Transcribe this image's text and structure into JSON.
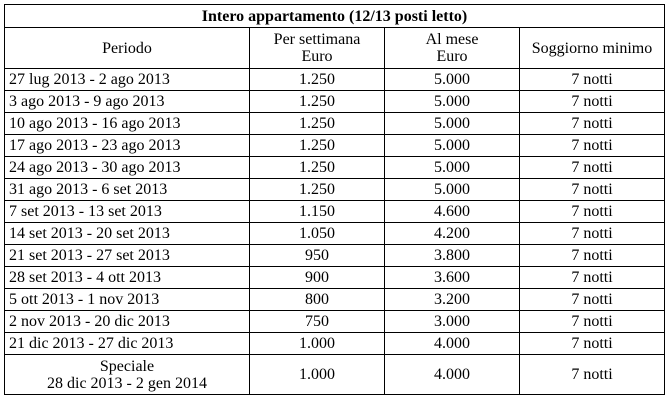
{
  "table": {
    "title": "Intero appartamento (12/13 posti letto)",
    "headers": {
      "period": "Periodo",
      "per_week_line1": "Per settimana",
      "per_week_line2": "Euro",
      "per_month_line1": "Al mese",
      "per_month_line2": "Euro",
      "min_stay": "Soggiorno minimo"
    },
    "rows": [
      {
        "period": "27 lug 2013 - 2 ago 2013",
        "week": "1.250",
        "month": "5.000",
        "min": "7 notti"
      },
      {
        "period": "3 ago 2013 - 9 ago 2013",
        "week": "1.250",
        "month": "5.000",
        "min": "7 notti"
      },
      {
        "period": "10 ago 2013 - 16 ago 2013",
        "week": "1.250",
        "month": "5.000",
        "min": "7 notti"
      },
      {
        "period": "17 ago 2013 - 23 ago 2013",
        "week": "1.250",
        "month": "5.000",
        "min": "7 notti"
      },
      {
        "period": "24 ago 2013 - 30 ago 2013",
        "week": "1.250",
        "month": "5.000",
        "min": "7 notti"
      },
      {
        "period": "31 ago 2013 - 6 set 2013",
        "week": "1.250",
        "month": "5.000",
        "min": "7 notti"
      },
      {
        "period": "7 set 2013 - 13 set 2013",
        "week": "1.150",
        "month": "4.600",
        "min": "7 notti"
      },
      {
        "period": "14 set 2013 - 20 set 2013",
        "week": "1.050",
        "month": "4.200",
        "min": "7 notti"
      },
      {
        "period": "21 set 2013 - 27 set 2013",
        "week": "950",
        "month": "3.800",
        "min": "7 notti"
      },
      {
        "period": "28 set 2013 - 4 ott 2013",
        "week": "900",
        "month": "3.600",
        "min": "7 notti"
      },
      {
        "period": "5 ott 2013 - 1 nov 2013",
        "week": "800",
        "month": "3.200",
        "min": "7 notti"
      },
      {
        "period": "2 nov 2013 - 20 dic 2013",
        "week": "750",
        "month": "3.000",
        "min": "7 notti"
      },
      {
        "period": "21 dic 2013 - 27 dic 2013",
        "week": "1.000",
        "month": "4.000",
        "min": "7 notti"
      }
    ],
    "special": {
      "label": "Speciale",
      "period": "28 dic 2013 - 2 gen 2014",
      "week": "1.000",
      "month": "4.000",
      "min": "7 notti"
    }
  }
}
